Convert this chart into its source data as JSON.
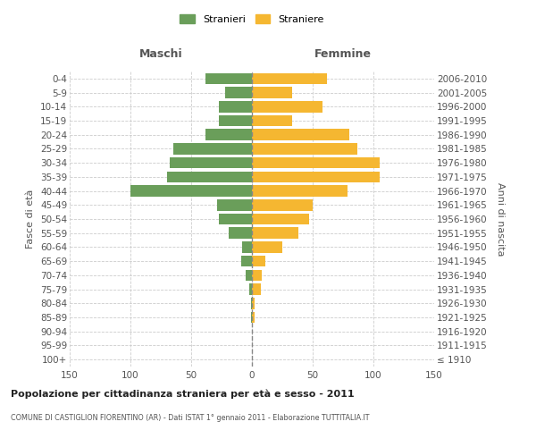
{
  "age_groups": [
    "100+",
    "95-99",
    "90-94",
    "85-89",
    "80-84",
    "75-79",
    "70-74",
    "65-69",
    "60-64",
    "55-59",
    "50-54",
    "45-49",
    "40-44",
    "35-39",
    "30-34",
    "25-29",
    "20-24",
    "15-19",
    "10-14",
    "5-9",
    "0-4"
  ],
  "birth_years": [
    "≤ 1910",
    "1911-1915",
    "1916-1920",
    "1921-1925",
    "1926-1930",
    "1931-1935",
    "1936-1940",
    "1941-1945",
    "1946-1950",
    "1951-1955",
    "1956-1960",
    "1961-1965",
    "1966-1970",
    "1971-1975",
    "1976-1980",
    "1981-1985",
    "1986-1990",
    "1991-1995",
    "1996-2000",
    "2001-2005",
    "2006-2010"
  ],
  "males": [
    0,
    0,
    0,
    1,
    1,
    2,
    5,
    9,
    8,
    19,
    27,
    29,
    100,
    70,
    68,
    65,
    38,
    27,
    27,
    22,
    38
  ],
  "females": [
    0,
    0,
    0,
    2,
    2,
    7,
    8,
    11,
    25,
    38,
    47,
    50,
    79,
    105,
    105,
    87,
    80,
    33,
    58,
    33,
    62
  ],
  "male_color": "#6a9e5a",
  "female_color": "#f5b731",
  "grid_color": "#cccccc",
  "center_line_color": "#888888",
  "title": "Popolazione per cittadinanza straniera per età e sesso - 2011",
  "subtitle": "COMUNE DI CASTIGLION FIORENTINO (AR) - Dati ISTAT 1° gennaio 2011 - Elaborazione TUTTITALIA.IT",
  "xlabel_left": "Maschi",
  "xlabel_right": "Femmine",
  "ylabel_left": "Fasce di età",
  "ylabel_right": "Anni di nascita",
  "legend_male": "Stranieri",
  "legend_female": "Straniere",
  "xlim": 150,
  "background_color": "#ffffff",
  "bar_height": 0.8
}
